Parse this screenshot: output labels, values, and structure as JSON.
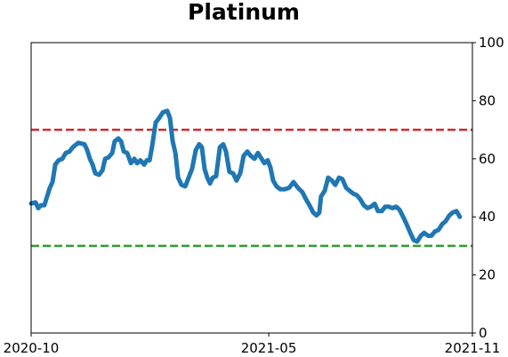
{
  "chart_data": {
    "type": "line",
    "title": "Platinum",
    "x": [
      0,
      0.13,
      0.21,
      0.29,
      0.39,
      0.47,
      0.55,
      0.63,
      0.71,
      0.81,
      0.92,
      1.02,
      1.13,
      1.23,
      1.39,
      1.57,
      1.65,
      1.73,
      1.81,
      1.89,
      2.0,
      2.1,
      2.18,
      2.28,
      2.39,
      2.46,
      2.57,
      2.65,
      2.73,
      2.83,
      2.94,
      3.04,
      3.12,
      3.22,
      3.33,
      3.41,
      3.49,
      3.56,
      3.67,
      3.77,
      3.88,
      4.01,
      4.09,
      4.17,
      4.25,
      4.33,
      4.43,
      4.54,
      4.64,
      4.74,
      4.85,
      4.95,
      5.03,
      5.11,
      5.19,
      5.27,
      5.35,
      5.45,
      5.56,
      5.66,
      5.74,
      5.84,
      5.95,
      6.05,
      6.16,
      6.26,
      6.37,
      6.47,
      6.58,
      6.68,
      6.79,
      6.87,
      6.97,
      7.05,
      7.13,
      7.23,
      7.34,
      7.47,
      7.6,
      7.73,
      7.86,
      7.99,
      8.1,
      8.2,
      8.31,
      8.41,
      8.49,
      8.54,
      8.65,
      8.75,
      8.86,
      8.96,
      9.07,
      9.17,
      9.28,
      9.38,
      9.49,
      9.59,
      9.7,
      9.8,
      9.91,
      10.01,
      10.12,
      10.22,
      10.33,
      10.43,
      10.54,
      10.64,
      10.75,
      10.85,
      10.96,
      11.06,
      11.17,
      11.27,
      11.37,
      11.48,
      11.58,
      11.69,
      11.79,
      11.9,
      12.0,
      12.11,
      12.21,
      12.32,
      12.42,
      12.53,
      12.63
    ],
    "values": [
      44.6,
      45,
      43,
      44,
      44,
      47,
      50,
      52,
      58,
      59.5,
      60,
      62,
      62.5,
      64,
      65.5,
      65,
      63,
      60,
      58,
      55,
      54.5,
      56,
      60,
      60.5,
      62,
      66,
      67,
      66,
      62.5,
      62,
      58.5,
      60,
      58.5,
      59.5,
      58,
      59.5,
      59.5,
      64,
      72.5,
      74,
      76,
      76.5,
      74,
      66,
      62,
      53.5,
      51,
      50.5,
      53.5,
      56.5,
      63,
      65,
      64,
      56.5,
      53.5,
      51.5,
      53.5,
      54,
      64,
      65,
      62.5,
      55.5,
      55,
      52.5,
      55,
      61,
      62.5,
      61,
      60,
      62,
      60,
      58.5,
      59.5,
      57,
      52.5,
      50.5,
      49.5,
      49.5,
      50,
      52,
      50,
      48.5,
      46,
      44,
      41.5,
      40.5,
      41.5,
      47,
      49,
      53.5,
      52.5,
      51,
      53.5,
      53,
      50,
      49,
      48,
      47.5,
      46,
      44,
      43,
      43.5,
      44.5,
      42,
      42,
      43.5,
      43.5,
      43,
      43.5,
      42.5,
      40,
      37.5,
      34.5,
      32,
      31.5,
      33.5,
      34.5,
      33.5,
      33.5,
      35,
      35.5,
      37.5,
      38.5,
      40.5,
      41.5,
      42,
      40
    ],
    "color": "#1f77b4",
    "xlim": [
      0,
      13
    ],
    "xticks": [
      {
        "value": 0,
        "label": "2020-10"
      },
      {
        "value": 7,
        "label": "2021-05"
      },
      {
        "value": 13,
        "label": "2021-11"
      }
    ],
    "ylim": [
      0,
      100
    ],
    "yticks": [
      0,
      20,
      40,
      60,
      80,
      100
    ],
    "y_axis_side": "right",
    "hlines": [
      {
        "value": 70,
        "color": "#d62728"
      },
      {
        "value": 30,
        "color": "#2ca02c"
      }
    ]
  }
}
